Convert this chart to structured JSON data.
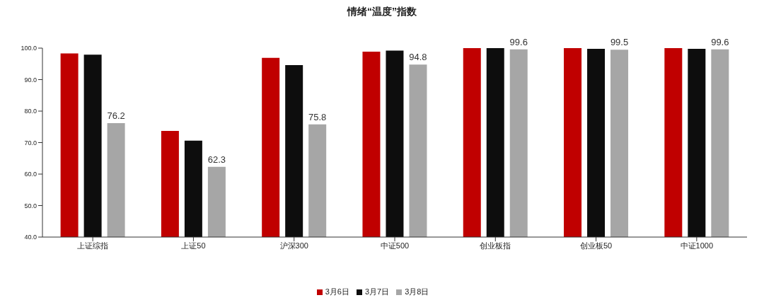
{
  "chart_data": {
    "type": "bar",
    "title": "情绪“温度”指数",
    "categories": [
      "上证综指",
      "上证50",
      "沪深300",
      "中证500",
      "创业板指",
      "创业板50",
      "中证1000"
    ],
    "series": [
      {
        "name": "3月6日",
        "color": "#c00000",
        "values": [
          98.3,
          73.7,
          96.9,
          98.9,
          100.0,
          100.0,
          100.0
        ]
      },
      {
        "name": "3月7日",
        "color": "#0d0d0d",
        "values": [
          97.9,
          70.6,
          94.6,
          99.2,
          100.0,
          99.8,
          99.8
        ]
      },
      {
        "name": "3月8日",
        "color": "#a6a6a6",
        "values": [
          76.2,
          62.3,
          75.8,
          94.8,
          99.6,
          99.5,
          99.6
        ],
        "value_labels": [
          "76.2",
          "62.3",
          "75.8",
          "94.8",
          "99.6",
          "99.5",
          "99.6"
        ]
      }
    ],
    "ylim": [
      40,
      100
    ],
    "yticks": [
      {
        "value": 40,
        "label": "40.0"
      },
      {
        "value": 50,
        "label": "50.0"
      },
      {
        "value": 60,
        "label": "60.0"
      },
      {
        "value": 70,
        "label": "70.0"
      },
      {
        "value": 80,
        "label": "80.0"
      },
      {
        "value": 90,
        "label": "90.0"
      },
      {
        "value": 100,
        "label": "100.0"
      }
    ],
    "grid": false,
    "legend": "bottom"
  }
}
